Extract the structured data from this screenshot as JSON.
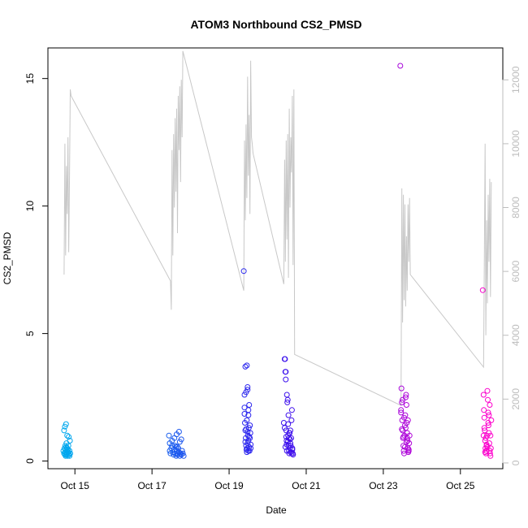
{
  "chart_data": {
    "type": "scatter",
    "title": "ATOM3 Northbound CS2_PMSD",
    "xlabel": "Date",
    "ylabel": "CS2_PMSD",
    "x_ticks": [
      "Oct 15",
      "Oct 17",
      "Oct 19",
      "Oct 21",
      "Oct 23",
      "Oct 25"
    ],
    "x_tick_days": [
      15,
      17,
      19,
      21,
      23,
      25
    ],
    "xlim": [
      14.3,
      26.1
    ],
    "ylim": [
      -0.3,
      16.2
    ],
    "y_ticks": [
      0,
      5,
      10,
      15
    ],
    "y2lim": [
      -180,
      13000
    ],
    "y2_ticks": [
      0,
      2000,
      4000,
      6000,
      8000,
      10000,
      12000
    ],
    "grid": false,
    "legend": "none",
    "point_color_start": "#00aaee",
    "point_color_mid": "#3311ee",
    "point_color_end": "#ff00cc",
    "line_color": "#c8c8c8",
    "secondary_series": {
      "kind": "line",
      "axis": "right",
      "x": [
        14.72,
        14.74,
        14.76,
        14.78,
        14.8,
        14.82,
        14.84,
        14.86,
        14.88,
        14.9,
        17.48,
        17.5,
        17.52,
        17.54,
        17.56,
        17.58,
        17.6,
        17.62,
        17.64,
        17.66,
        17.68,
        17.7,
        17.72,
        17.74,
        17.76,
        17.78,
        17.8,
        19.38,
        19.4,
        19.42,
        19.44,
        19.46,
        19.48,
        19.5,
        19.52,
        19.54,
        19.56,
        19.58,
        19.6,
        19.62,
        20.42,
        20.44,
        20.46,
        20.48,
        20.5,
        20.52,
        20.54,
        20.56,
        20.58,
        20.6,
        20.62,
        20.64,
        20.66,
        20.68,
        20.7,
        23.46,
        23.48,
        23.5,
        23.52,
        23.54,
        23.56,
        23.58,
        23.6,
        23.62,
        23.64,
        23.66,
        23.68,
        23.7,
        25.6,
        25.62,
        25.64,
        25.66,
        25.68,
        25.7,
        25.72,
        25.74,
        25.76,
        25.78,
        25.8
      ],
      "y": [
        5900,
        10000,
        6500,
        9300,
        7800,
        10200,
        6600,
        9000,
        11700,
        11500,
        5700,
        4800,
        9800,
        6500,
        10300,
        8000,
        10800,
        8500,
        11100,
        7200,
        11500,
        9800,
        11800,
        8800,
        12000,
        10200,
        12900,
        5400,
        10100,
        7600,
        10600,
        8300,
        12100,
        9000,
        10900,
        7800,
        12600,
        10200,
        10000,
        9700,
        5600,
        9500,
        6300,
        10100,
        7000,
        10300,
        5800,
        11100,
        8000,
        10200,
        9100,
        11500,
        6200,
        11700,
        3400,
        1800,
        8600,
        4400,
        8400,
        5100,
        8100,
        4900,
        7100,
        5400,
        8100,
        6300,
        8300,
        5900,
        3000,
        6200,
        10000,
        4000,
        7600,
        5000,
        8400,
        6300,
        8900,
        5200,
        8800
      ]
    },
    "series": [
      {
        "name": "",
        "x": [
          14.7,
          14.72,
          14.73,
          14.74,
          14.75,
          14.75,
          14.76,
          14.76,
          14.77,
          14.78,
          14.78,
          14.79,
          14.8,
          14.8,
          14.81,
          14.82,
          14.82,
          14.83,
          14.84,
          14.85,
          14.86,
          14.86,
          14.88,
          14.72,
          14.74,
          14.77,
          14.8,
          14.84,
          14.87,
          14.78
        ],
        "y": [
          0.4,
          0.3,
          0.5,
          0.25,
          0.6,
          0.35,
          0.2,
          0.45,
          0.3,
          0.55,
          0.25,
          0.4,
          0.3,
          0.5,
          0.2,
          0.35,
          0.45,
          0.6,
          0.3,
          0.25,
          0.4,
          0.2,
          0.3,
          1.2,
          1.35,
          1.45,
          1.0,
          0.95,
          0.8,
          0.7
        ]
      },
      {
        "name": "",
        "x": [
          17.44,
          17.46,
          17.48,
          17.5,
          17.52,
          17.54,
          17.56,
          17.58,
          17.6,
          17.62,
          17.63,
          17.64,
          17.65,
          17.66,
          17.68,
          17.7,
          17.72,
          17.74,
          17.76,
          17.78,
          17.8,
          17.82,
          17.46,
          17.52,
          17.58,
          17.64,
          17.7,
          17.72,
          17.76,
          17.6,
          17.66
        ],
        "y": [
          1.0,
          0.4,
          0.3,
          0.5,
          0.6,
          0.35,
          0.25,
          0.45,
          0.3,
          0.55,
          0.2,
          0.4,
          0.3,
          0.25,
          0.5,
          0.35,
          0.2,
          0.3,
          0.25,
          0.4,
          0.3,
          0.2,
          0.7,
          0.8,
          0.9,
          1.05,
          1.15,
          0.75,
          0.85,
          0.6,
          0.55
        ]
      },
      {
        "name": "",
        "x": [
          19.38,
          19.4,
          19.41,
          19.42,
          19.43,
          19.44,
          19.45,
          19.46,
          19.47,
          19.48,
          19.49,
          19.5,
          19.51,
          19.52,
          19.53,
          19.54,
          19.55,
          19.56,
          19.4,
          19.44,
          19.48,
          19.52,
          19.42,
          19.46,
          19.5,
          19.54,
          19.46,
          19.5,
          19.42,
          19.48,
          19.52,
          19.56,
          19.44,
          19.5,
          19.48,
          19.4
        ],
        "y": [
          7.45,
          2.1,
          1.5,
          1.2,
          0.9,
          0.6,
          0.45,
          0.35,
          0.5,
          0.7,
          1.0,
          0.8,
          1.3,
          0.55,
          0.4,
          0.9,
          1.1,
          0.65,
          2.6,
          2.7,
          2.9,
          2.2,
          3.7,
          3.75,
          1.8,
          1.4,
          1.6,
          2.0,
          0.75,
          1.15,
          0.95,
          0.5,
          1.25,
          0.4,
          2.8,
          1.85
        ]
      },
      {
        "name": "",
        "x": [
          20.42,
          20.44,
          20.45,
          20.46,
          20.47,
          20.48,
          20.49,
          20.5,
          20.51,
          20.52,
          20.53,
          20.54,
          20.55,
          20.56,
          20.57,
          20.58,
          20.59,
          20.6,
          20.61,
          20.62,
          20.63,
          20.64,
          20.65,
          20.66,
          20.44,
          20.46,
          20.48,
          20.5,
          20.52,
          20.54,
          20.56,
          20.58,
          20.6,
          20.62,
          20.64,
          20.47,
          20.53,
          20.59,
          20.49,
          20.55
        ],
        "y": [
          1.5,
          4.0,
          4.0,
          3.5,
          3.5,
          1.2,
          0.8,
          2.6,
          2.3,
          2.4,
          1.0,
          0.6,
          0.4,
          0.3,
          1.1,
          0.5,
          0.7,
          0.35,
          0.9,
          1.6,
          2.0,
          0.45,
          0.3,
          0.25,
          1.3,
          0.55,
          0.95,
          0.4,
          0.75,
          1.8,
          1.1,
          0.85,
          0.6,
          0.3,
          0.5,
          3.2,
          1.45,
          1.2,
          0.65,
          0.9
        ]
      },
      {
        "name": "",
        "x": [
          23.44,
          23.46,
          23.47,
          23.48,
          23.49,
          23.5,
          23.51,
          23.52,
          23.53,
          23.54,
          23.55,
          23.56,
          23.57,
          23.58,
          23.59,
          23.6,
          23.61,
          23.62,
          23.63,
          23.64,
          23.65,
          23.66,
          23.67,
          23.68,
          23.48,
          23.52,
          23.56,
          23.6,
          23.64,
          23.5,
          23.54,
          23.58,
          23.62,
          23.66,
          23.46
        ],
        "y": [
          15.5,
          2.0,
          2.85,
          2.3,
          1.6,
          1.2,
          0.9,
          0.6,
          0.4,
          0.3,
          1.0,
          1.4,
          1.8,
          2.5,
          2.6,
          2.2,
          1.5,
          1.1,
          0.8,
          0.5,
          0.35,
          0.4,
          0.7,
          1.0,
          1.25,
          0.95,
          0.55,
          0.75,
          1.6,
          2.4,
          1.7,
          1.3,
          0.9,
          0.45,
          1.9
        ]
      },
      {
        "name": "",
        "x": [
          25.58,
          25.6,
          25.61,
          25.62,
          25.63,
          25.64,
          25.65,
          25.66,
          25.67,
          25.68,
          25.69,
          25.7,
          25.71,
          25.72,
          25.73,
          25.74,
          25.75,
          25.76,
          25.77,
          25.78,
          25.79,
          25.8,
          25.62,
          25.66,
          25.7,
          25.74,
          25.78,
          25.64,
          25.68,
          25.72,
          25.76,
          25.6
        ],
        "y": [
          6.7,
          2.6,
          2.0,
          1.7,
          1.2,
          0.8,
          0.5,
          0.3,
          0.4,
          0.6,
          1.0,
          2.75,
          2.4,
          1.9,
          1.4,
          1.1,
          0.7,
          0.4,
          0.3,
          0.2,
          0.5,
          1.6,
          1.3,
          0.9,
          0.55,
          1.8,
          1.0,
          0.35,
          0.65,
          1.5,
          2.2,
          1.0
        ]
      }
    ]
  }
}
